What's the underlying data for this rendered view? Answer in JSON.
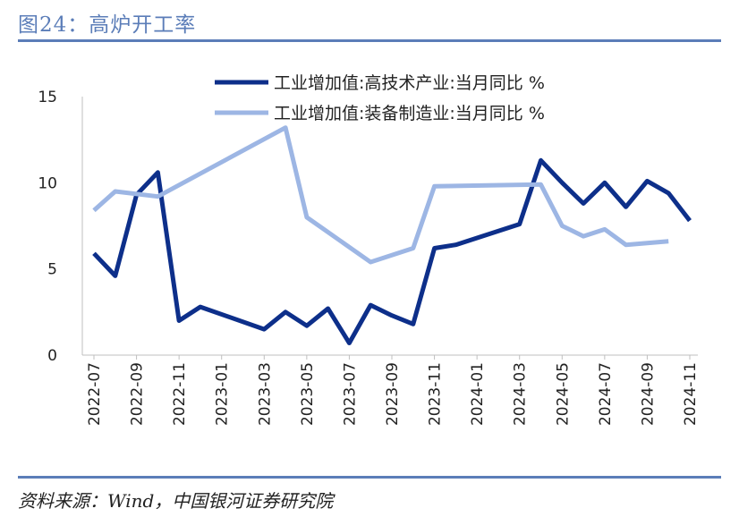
{
  "header": {
    "title": "图24：高炉开工率"
  },
  "footer": {
    "source": "资料来源：Wind，中国银河证券研究院"
  },
  "colors": {
    "accent": "#5b7db8",
    "series1": "#0d2f8a",
    "series2": "#9db6e4"
  },
  "chart_data": {
    "type": "line",
    "title": "",
    "xlabel": "",
    "ylabel": "",
    "ylim": [
      0,
      15
    ],
    "yticks": [
      "0",
      "5",
      "10",
      "15"
    ],
    "x": [
      "2022-07",
      "2022-08",
      "2022-09",
      "2022-10",
      "2022-11",
      "2022-12",
      "2023-01",
      "2023-02",
      "2023-03",
      "2023-04",
      "2023-05",
      "2023-06",
      "2023-07",
      "2023-08",
      "2023-09",
      "2023-10",
      "2023-11",
      "2023-12",
      "2024-01",
      "2024-02",
      "2024-03",
      "2024-04",
      "2024-05",
      "2024-06",
      "2024-07",
      "2024-08",
      "2024-09",
      "2024-10",
      "2024-11"
    ],
    "xtick_labels": [
      "2022-07",
      "2022-09",
      "2022-11",
      "2023-01",
      "2023-03",
      "2023-05",
      "2023-07",
      "2023-09",
      "2023-11",
      "2024-01",
      "2024-03",
      "2024-05",
      "2024-07",
      "2024-09",
      "2024-11"
    ],
    "grid": false,
    "legend_position": "top",
    "series": [
      {
        "name": "工业增加值:高技术产业:当月同比 %",
        "values": [
          5.9,
          4.6,
          9.3,
          10.6,
          2.0,
          2.8,
          null,
          null,
          1.5,
          2.5,
          1.7,
          2.7,
          0.7,
          2.9,
          2.3,
          1.8,
          6.2,
          6.4,
          null,
          null,
          7.6,
          11.3,
          10.0,
          8.8,
          10.0,
          8.6,
          10.1,
          9.4,
          7.8
        ]
      },
      {
        "name": "工业增加值:装备制造业:当月同比 %",
        "values": [
          8.4,
          9.5,
          null,
          9.2,
          null,
          null,
          null,
          null,
          null,
          13.2,
          8.0,
          null,
          null,
          5.4,
          null,
          6.2,
          9.8,
          null,
          null,
          null,
          null,
          9.9,
          7.5,
          6.9,
          7.3,
          6.4,
          null,
          6.6,
          null
        ]
      }
    ]
  }
}
